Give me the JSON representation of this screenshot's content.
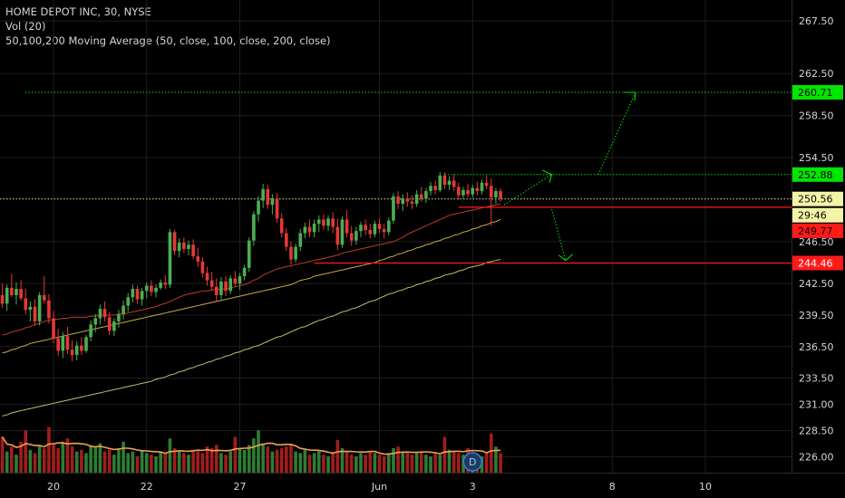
{
  "header": {
    "title": "HOME DEPOT INC, 30, NYSE",
    "volume": "Vol (20)",
    "moving_average": "50,100,200 Moving Average (50, close, 100, close, 200, close)"
  },
  "colors": {
    "up": "#4caf50",
    "down": "#e53935",
    "ma50": "#c0392b",
    "ma100": "#c8a84a",
    "ma200": "#b7c16a",
    "vol_ma": "#f0a050",
    "green_tag": "#00e600",
    "red_tag": "#ff1a1a",
    "yellow_tag": "#f4f4a8",
    "grid": "#1e1e1e"
  },
  "price_tags": {
    "current": "250.56",
    "countdown": "29:46",
    "target_high": "260.71",
    "target_mid": "252.88",
    "support_1": "249.77",
    "support_2": "244.46"
  },
  "event_marker": {
    "label": "D",
    "x_index": 101
  },
  "chart_data": {
    "type": "candlestick",
    "y_axis": {
      "range": [
        224.5,
        269.5
      ],
      "ticks": [
        "267.50",
        "262.50",
        "258.50",
        "254.50",
        "246.50",
        "242.50",
        "239.50",
        "236.50",
        "233.50",
        "231.00",
        "228.50",
        "226.00"
      ]
    },
    "x_axis": {
      "labels": [
        {
          "text": "20",
          "index": 11
        },
        {
          "text": "22",
          "index": 31
        },
        {
          "text": "27",
          "index": 51
        },
        {
          "text": "Jun",
          "index": 81
        },
        {
          "text": "3",
          "index": 101
        },
        {
          "text": "8",
          "index": 131
        },
        {
          "text": "10",
          "index": 151
        }
      ],
      "total_slots": 170
    },
    "candles": [
      [
        241.4,
        242.5,
        240.2,
        240.6
      ],
      [
        240.6,
        242.4,
        239.9,
        242.1
      ],
      [
        242.1,
        243.4,
        241.2,
        241.4
      ],
      [
        241.4,
        242.6,
        240.5,
        242.0
      ],
      [
        242.0,
        242.8,
        240.9,
        241.1
      ],
      [
        241.1,
        242.0,
        239.6,
        240.0
      ],
      [
        240.0,
        240.8,
        238.9,
        240.3
      ],
      [
        240.3,
        241.0,
        238.5,
        238.9
      ],
      [
        238.9,
        241.7,
        238.5,
        241.4
      ],
      [
        241.4,
        243.2,
        240.6,
        240.9
      ],
      [
        240.9,
        241.5,
        238.7,
        239.2
      ],
      [
        239.2,
        239.9,
        236.8,
        237.3
      ],
      [
        237.3,
        238.2,
        235.6,
        236.1
      ],
      [
        236.1,
        237.9,
        235.4,
        237.5
      ],
      [
        237.5,
        238.4,
        235.8,
        236.2
      ],
      [
        236.2,
        237.1,
        235.1,
        235.7
      ],
      [
        235.7,
        237.0,
        235.2,
        236.6
      ],
      [
        236.6,
        237.4,
        235.7,
        236.1
      ],
      [
        236.1,
        237.6,
        235.9,
        237.4
      ],
      [
        237.4,
        239.0,
        237.0,
        238.6
      ],
      [
        238.6,
        239.6,
        237.9,
        239.2
      ],
      [
        239.2,
        240.5,
        238.6,
        240.1
      ],
      [
        240.1,
        240.8,
        238.9,
        239.3
      ],
      [
        239.3,
        239.8,
        237.6,
        238.0
      ],
      [
        238.0,
        239.2,
        237.5,
        238.9
      ],
      [
        238.9,
        240.0,
        238.3,
        239.6
      ],
      [
        239.6,
        240.9,
        239.1,
        240.4
      ],
      [
        240.4,
        241.6,
        239.8,
        241.2
      ],
      [
        241.2,
        242.4,
        240.7,
        242.0
      ],
      [
        242.0,
        242.3,
        240.6,
        241.0
      ],
      [
        241.0,
        242.1,
        240.4,
        241.8
      ],
      [
        241.8,
        242.6,
        241.1,
        242.3
      ],
      [
        242.3,
        242.8,
        241.3,
        241.7
      ],
      [
        241.7,
        242.4,
        241.2,
        242.1
      ],
      [
        242.1,
        242.9,
        241.9,
        242.6
      ],
      [
        242.6,
        243.3,
        242.0,
        242.4
      ],
      [
        242.4,
        247.7,
        242.1,
        247.4
      ],
      [
        247.4,
        247.6,
        245.2,
        245.6
      ],
      [
        245.6,
        246.8,
        245.0,
        246.4
      ],
      [
        246.4,
        246.9,
        245.4,
        245.8
      ],
      [
        245.8,
        246.6,
        245.2,
        246.2
      ],
      [
        246.2,
        246.7,
        244.8,
        245.1
      ],
      [
        245.1,
        245.9,
        244.1,
        244.6
      ],
      [
        244.6,
        245.0,
        243.1,
        243.5
      ],
      [
        243.5,
        244.1,
        242.3,
        242.8
      ],
      [
        242.8,
        243.6,
        241.8,
        242.2
      ],
      [
        242.2,
        243.0,
        240.8,
        241.4
      ],
      [
        241.4,
        243.1,
        241.0,
        242.7
      ],
      [
        242.7,
        243.2,
        241.3,
        241.8
      ],
      [
        241.8,
        243.3,
        241.5,
        243.0
      ],
      [
        243.0,
        243.7,
        242.2,
        242.5
      ],
      [
        242.5,
        243.5,
        241.9,
        243.2
      ],
      [
        243.2,
        244.3,
        242.8,
        244.0
      ],
      [
        244.0,
        246.9,
        243.6,
        246.6
      ],
      [
        246.6,
        249.4,
        246.1,
        249.1
      ],
      [
        249.1,
        250.8,
        248.4,
        250.4
      ],
      [
        250.4,
        252.0,
        249.7,
        251.5
      ],
      [
        251.5,
        251.9,
        249.6,
        250.0
      ],
      [
        250.0,
        251.0,
        249.1,
        250.6
      ],
      [
        250.6,
        251.1,
        248.3,
        248.7
      ],
      [
        248.7,
        249.2,
        246.9,
        247.3
      ],
      [
        247.3,
        247.8,
        245.6,
        246.0
      ],
      [
        246.0,
        246.5,
        244.3,
        244.8
      ],
      [
        244.8,
        246.3,
        244.5,
        246.0
      ],
      [
        246.0,
        247.7,
        245.6,
        247.3
      ],
      [
        247.3,
        248.3,
        246.8,
        247.9
      ],
      [
        247.9,
        248.6,
        246.9,
        247.4
      ],
      [
        247.4,
        248.6,
        246.9,
        248.2
      ],
      [
        248.2,
        249.0,
        247.4,
        248.6
      ],
      [
        248.6,
        249.1,
        247.6,
        248.0
      ],
      [
        248.0,
        249.0,
        247.5,
        248.7
      ],
      [
        248.7,
        249.3,
        247.3,
        247.9
      ],
      [
        247.9,
        248.7,
        245.7,
        246.2
      ],
      [
        246.2,
        248.9,
        245.9,
        248.6
      ],
      [
        248.6,
        249.5,
        246.9,
        247.3
      ],
      [
        247.3,
        248.0,
        246.1,
        246.6
      ],
      [
        246.6,
        247.9,
        246.2,
        247.5
      ],
      [
        247.5,
        248.4,
        246.9,
        248.1
      ],
      [
        248.1,
        248.6,
        247.1,
        247.6
      ],
      [
        247.6,
        248.2,
        246.8,
        247.2
      ],
      [
        247.2,
        248.5,
        246.9,
        248.2
      ],
      [
        248.2,
        248.7,
        247.3,
        247.7
      ],
      [
        247.7,
        248.2,
        246.8,
        247.4
      ],
      [
        247.4,
        248.8,
        247.1,
        248.5
      ],
      [
        248.5,
        251.1,
        248.2,
        250.8
      ],
      [
        250.8,
        251.3,
        249.6,
        250.1
      ],
      [
        250.1,
        251.0,
        249.4,
        250.6
      ],
      [
        250.6,
        251.2,
        249.8,
        250.3
      ],
      [
        250.3,
        250.9,
        249.6,
        250.1
      ],
      [
        250.1,
        251.4,
        249.8,
        251.0
      ],
      [
        251.0,
        251.7,
        250.3,
        250.6
      ],
      [
        250.6,
        251.6,
        250.2,
        251.3
      ],
      [
        251.3,
        252.2,
        250.9,
        251.8
      ],
      [
        251.8,
        252.3,
        251.0,
        251.4
      ],
      [
        251.4,
        253.1,
        251.2,
        252.8
      ],
      [
        252.8,
        253.1,
        251.5,
        251.9
      ],
      [
        251.9,
        252.7,
        251.4,
        252.3
      ],
      [
        252.3,
        252.9,
        251.3,
        251.7
      ],
      [
        251.7,
        252.1,
        250.5,
        250.9
      ],
      [
        250.9,
        251.7,
        250.6,
        251.4
      ],
      [
        251.4,
        252.0,
        250.7,
        251.0
      ],
      [
        251.0,
        251.9,
        250.7,
        251.6
      ],
      [
        251.6,
        252.2,
        250.9,
        251.3
      ],
      [
        251.3,
        252.4,
        251.0,
        252.1
      ],
      [
        252.1,
        252.8,
        251.5,
        251.8
      ],
      [
        251.8,
        252.5,
        248.0,
        250.7
      ],
      [
        250.7,
        251.6,
        250.1,
        251.3
      ],
      [
        251.3,
        251.6,
        250.3,
        250.6
      ]
    ],
    "volume": [
      2.2,
      1.3,
      1.6,
      1.1,
      1.9,
      2.6,
      1.4,
      1.2,
      1.7,
      1.5,
      2.8,
      1.8,
      1.5,
      1.9,
      2.1,
      1.6,
      1.3,
      1.4,
      1.2,
      1.7,
      1.6,
      1.8,
      1.3,
      1.4,
      1.1,
      1.5,
      1.9,
      1.2,
      1.3,
      1.0,
      1.4,
      1.2,
      1.1,
      1.0,
      1.3,
      1.2,
      2.1,
      1.5,
      1.3,
      1.2,
      1.1,
      1.4,
      1.3,
      1.2,
      1.6,
      1.5,
      1.7,
      1.2,
      1.1,
      1.3,
      2.2,
      1.5,
      1.4,
      1.7,
      2.1,
      2.6,
      1.8,
      1.6,
      1.3,
      1.4,
      1.5,
      1.6,
      1.7,
      1.3,
      1.2,
      1.4,
      1.1,
      1.2,
      1.3,
      1.1,
      1.0,
      1.2,
      2.0,
      1.5,
      1.3,
      1.1,
      1.0,
      1.2,
      1.1,
      1.3,
      1.2,
      1.1,
      1.0,
      1.2,
      1.5,
      1.6,
      1.3,
      1.2,
      1.1,
      1.2,
      1.3,
      1.1,
      1.0,
      1.2,
      1.1,
      2.2,
      1.4,
      1.3,
      1.2,
      1.1,
      1.5,
      1.2,
      1.1,
      1.0,
      1.2,
      2.4,
      1.6,
      1.2
    ],
    "ma50": [
      237.6,
      237.7,
      237.9,
      238.0,
      238.1,
      238.3,
      238.4,
      238.6,
      238.7,
      238.9,
      239.0,
      239.1,
      239.1,
      239.2,
      239.2,
      239.3,
      239.3,
      239.3,
      239.3,
      239.4,
      239.4,
      239.5,
      239.5,
      239.5,
      239.5,
      239.6,
      239.6,
      239.7,
      239.8,
      239.9,
      240.0,
      240.1,
      240.2,
      240.3,
      240.5,
      240.6,
      240.8,
      241.0,
      241.2,
      241.4,
      241.5,
      241.6,
      241.7,
      241.8,
      241.8,
      241.9,
      241.9,
      242.0,
      242.0,
      242.1,
      242.2,
      242.3,
      242.4,
      242.6,
      242.8,
      243.0,
      243.3,
      243.5,
      243.7,
      243.9,
      244.0,
      244.1,
      244.2,
      244.3,
      244.4,
      244.5,
      244.6,
      244.7,
      244.8,
      244.9,
      245.0,
      245.1,
      245.2,
      245.4,
      245.5,
      245.6,
      245.7,
      245.8,
      245.9,
      246.0,
      246.1,
      246.2,
      246.3,
      246.4,
      246.5,
      246.7,
      246.9,
      247.2,
      247.4,
      247.6,
      247.8,
      248.0,
      248.2,
      248.4,
      248.6,
      248.8,
      249.0,
      249.1,
      249.2,
      249.3,
      249.4,
      249.5,
      249.6,
      249.7,
      249.8,
      249.9,
      250.0,
      250.1
    ],
    "ma100": [
      235.9,
      236.0,
      236.2,
      236.3,
      236.5,
      236.6,
      236.8,
      236.9,
      237.0,
      237.1,
      237.2,
      237.3,
      237.4,
      237.5,
      237.6,
      237.7,
      237.8,
      237.9,
      238.0,
      238.1,
      238.2,
      238.3,
      238.4,
      238.5,
      238.6,
      238.7,
      238.8,
      238.9,
      239.0,
      239.1,
      239.2,
      239.3,
      239.4,
      239.5,
      239.6,
      239.7,
      239.8,
      239.9,
      240.0,
      240.1,
      240.2,
      240.3,
      240.4,
      240.5,
      240.6,
      240.7,
      240.8,
      240.9,
      241.0,
      241.1,
      241.2,
      241.3,
      241.4,
      241.5,
      241.6,
      241.7,
      241.8,
      241.9,
      242.0,
      242.1,
      242.2,
      242.3,
      242.4,
      242.6,
      242.8,
      242.9,
      243.0,
      243.2,
      243.3,
      243.4,
      243.5,
      243.6,
      243.7,
      243.8,
      243.9,
      244.0,
      244.1,
      244.2,
      244.3,
      244.4,
      244.5,
      244.7,
      244.8,
      245.0,
      245.1,
      245.3,
      245.4,
      245.6,
      245.7,
      245.9,
      246.0,
      246.2,
      246.3,
      246.5,
      246.6,
      246.8,
      246.9,
      247.1,
      247.2,
      247.4,
      247.5,
      247.7,
      247.8,
      248.0,
      248.1,
      248.3,
      248.4,
      248.6
    ],
    "ma200": [
      229.9,
      230.0,
      230.2,
      230.3,
      230.4,
      230.5,
      230.6,
      230.7,
      230.8,
      230.9,
      231.0,
      231.1,
      231.2,
      231.3,
      231.4,
      231.5,
      231.6,
      231.7,
      231.8,
      231.9,
      232.0,
      232.1,
      232.2,
      232.3,
      232.4,
      232.5,
      232.6,
      232.7,
      232.8,
      232.9,
      233.0,
      233.1,
      233.2,
      233.4,
      233.5,
      233.6,
      233.8,
      233.9,
      234.1,
      234.2,
      234.4,
      234.5,
      234.7,
      234.8,
      235.0,
      235.1,
      235.3,
      235.4,
      235.6,
      235.7,
      235.9,
      236.0,
      236.2,
      236.3,
      236.5,
      236.6,
      236.8,
      237.0,
      237.2,
      237.4,
      237.5,
      237.7,
      237.9,
      238.1,
      238.3,
      238.4,
      238.6,
      238.8,
      239.0,
      239.1,
      239.3,
      239.4,
      239.6,
      239.8,
      239.9,
      240.1,
      240.2,
      240.4,
      240.6,
      240.8,
      240.9,
      241.1,
      241.3,
      241.5,
      241.6,
      241.8,
      241.9,
      242.1,
      242.2,
      242.4,
      242.5,
      242.7,
      242.8,
      243.0,
      243.1,
      243.3,
      243.4,
      243.5,
      243.7,
      243.8,
      244.0,
      244.1,
      244.2,
      244.3,
      244.5,
      244.6,
      244.7,
      244.8
    ],
    "levels": [
      {
        "name": "target-high",
        "price": 260.71,
        "style": "dotted",
        "color": "green_tag"
      },
      {
        "name": "target-mid",
        "price": 252.88,
        "style": "dotted",
        "color": "green_tag"
      },
      {
        "name": "current",
        "price": 250.56,
        "style": "dotted",
        "color": "yellow_tag"
      },
      {
        "name": "support-1",
        "price": 249.77,
        "style": "solid",
        "color": "red_tag"
      },
      {
        "name": "support-2",
        "price": 244.46,
        "style": "solid",
        "color": "red_tag"
      }
    ]
  }
}
